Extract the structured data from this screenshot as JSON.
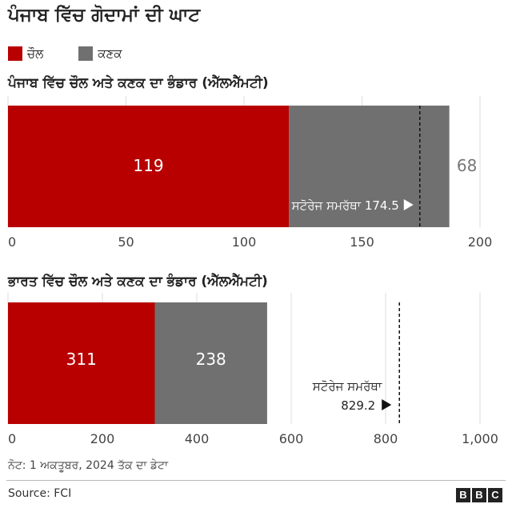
{
  "title": "ਪੰਜਾਬ ਵਿੱਚ ਗੋਦਾਮਾਂ ਦੀ ਘਾਟ",
  "legend": [
    {
      "label": "ਚੌਲ",
      "color": "#b80000"
    },
    {
      "label": "ਕਣਕ",
      "color": "#707070"
    }
  ],
  "chart_data": [
    {
      "type": "bar",
      "stacked": true,
      "orientation": "horizontal",
      "title": "ਪੰਜਾਬ ਵਿੱਚ ਚੌਲ ਅਤੇ ਕਣਕ ਦਾ ਭੰਡਾਰ (ਐੱਲਐੱਮਟੀ)",
      "series": [
        {
          "name": "ਚੌਲ",
          "values": [
            119
          ],
          "color": "#b80000",
          "label": "119"
        },
        {
          "name": "ਕਣਕ",
          "values": [
            68
          ],
          "color": "#707070",
          "label": "68"
        }
      ],
      "xlim": [
        0,
        200
      ],
      "ticks": [
        0,
        50,
        100,
        150,
        200
      ],
      "tick_labels": [
        "0",
        "50",
        "100",
        "150",
        "200"
      ],
      "reference": {
        "value": 174.5,
        "label": "ਸਟੋਰੇਜ ਸਮਰੱਥਾ 174.5"
      },
      "grid": true
    },
    {
      "type": "bar",
      "stacked": true,
      "orientation": "horizontal",
      "title": "ਭਾਰਤ ਵਿੱਚ ਚੌਲ ਅਤੇ ਕਣਕ ਦਾ ਭੰਡਾਰ (ਐੱਲਐੱਮਟੀ)",
      "series": [
        {
          "name": "ਚੌਲ",
          "values": [
            311
          ],
          "color": "#b80000",
          "label": "311"
        },
        {
          "name": "ਕਣਕ",
          "values": [
            238
          ],
          "color": "#707070",
          "label": "238"
        }
      ],
      "xlim": [
        0,
        1000
      ],
      "ticks": [
        0,
        200,
        400,
        600,
        800,
        1000
      ],
      "tick_labels": [
        "0",
        "200",
        "400",
        "600",
        "800",
        "1,000"
      ],
      "reference": {
        "value": 829.2,
        "label_line1": "ਸਟੋਰੇਜ ਸਮਰੱਥਾ",
        "label_line2": "829.2"
      },
      "grid": true
    }
  ],
  "note": "ਨੋਟ: 1 ਅਕਤੂਬਰ, 2024 ਤੱਕ ਦਾ ਡੇਟਾ",
  "source": "Source: FCI",
  "logo": [
    "B",
    "B",
    "C"
  ]
}
